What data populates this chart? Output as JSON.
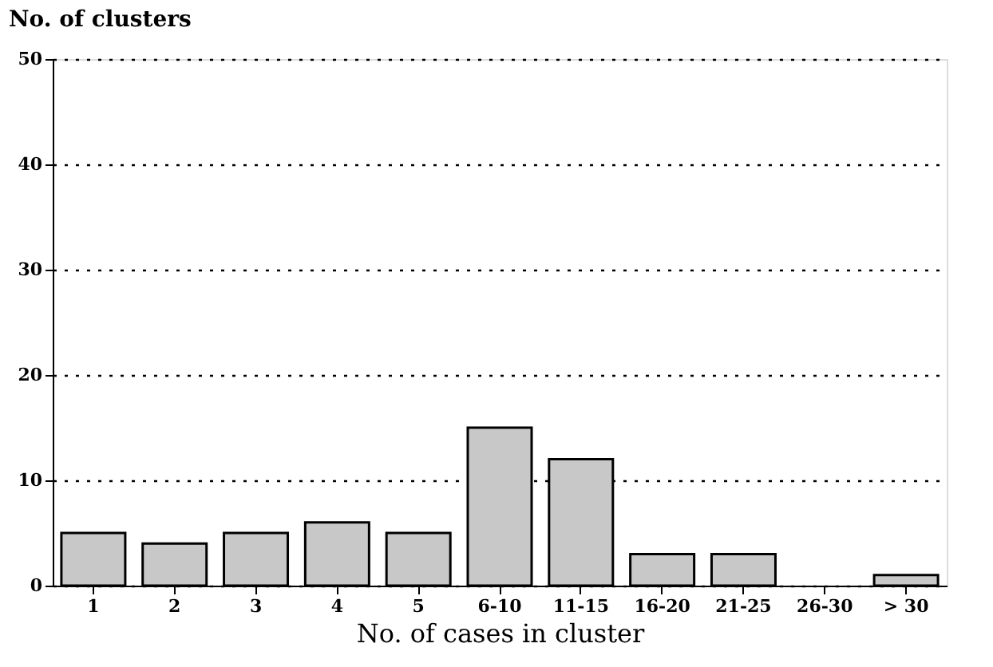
{
  "chart_data": {
    "type": "bar",
    "xlabel": "No. of cases in cluster",
    "ylabel": "No. of clusters",
    "categories": [
      "1",
      "2",
      "3",
      "4",
      "5",
      "6-10",
      "11-15",
      "16-20",
      "21-25",
      "26-30",
      "> 30"
    ],
    "values": [
      5,
      4,
      5,
      6,
      5,
      15,
      12,
      3,
      3,
      0,
      1
    ],
    "color": "#c8c8c8",
    "ylim": [
      0,
      50
    ],
    "yticks": [
      0,
      10,
      20,
      30,
      40,
      50
    ],
    "grid": "y"
  }
}
